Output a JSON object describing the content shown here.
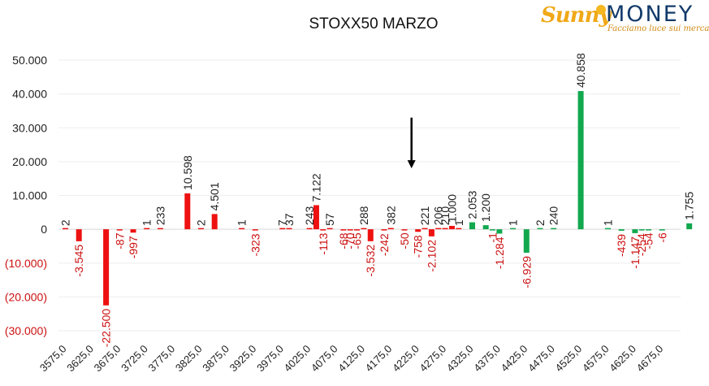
{
  "logo": {
    "brand_a": "Sunny",
    "brand_b": "MONEY",
    "tagline": "Facciamo luce sui mercati"
  },
  "chart_data": {
    "type": "bar",
    "title": "STOXX50 MARZO",
    "xlabel": "",
    "ylabel": "",
    "ylim": [
      -30000,
      50000
    ],
    "y_ticks": [
      50000,
      40000,
      30000,
      20000,
      10000,
      0,
      -10000,
      -20000,
      -30000
    ],
    "y_tick_labels": [
      "50.000",
      "40.000",
      "30.000",
      "20.000",
      "10.000",
      "0",
      "(10.000)",
      "(20.000)",
      "(30.000)"
    ],
    "grid": "horizontal",
    "colors": {
      "put": "#ee1111",
      "call": "#11a84e",
      "axis_text": "#222222",
      "neg_text": "#cc1111",
      "grid": "#eeeeee",
      "arrow": "#000000"
    },
    "put_strikes": [
      3575,
      3825
    ],
    "x_tick_labels": [
      "3575,0",
      "3625,0",
      "3675,0",
      "3725,0",
      "3775,0",
      "3825,0",
      "3875,0",
      "3925,0",
      "3975,0",
      "4025,0",
      "4075,0",
      "4125,0",
      "4175,0",
      "4225,0",
      "4275,0",
      "4325,0",
      "4375,0",
      "4425,0",
      "4475,0",
      "4525,0",
      "4575,0",
      "4625,0",
      "4675,0"
    ],
    "bars": [
      {
        "x": 3575,
        "value": 2,
        "label": "2",
        "color": "put"
      },
      {
        "x": 3600,
        "value": -3545,
        "label": "-3.545",
        "color": "put"
      },
      {
        "x": 3650,
        "value": -22500,
        "label": "-22.500",
        "color": "put"
      },
      {
        "x": 3675,
        "value": -87,
        "label": "-87",
        "color": "put"
      },
      {
        "x": 3700,
        "value": -997,
        "label": "-997",
        "color": "put"
      },
      {
        "x": 3725,
        "value": 1,
        "label": "1",
        "color": "put"
      },
      {
        "x": 3750,
        "value": 233,
        "label": "233",
        "color": "put"
      },
      {
        "x": 3800,
        "value": 10598,
        "label": "10.598",
        "color": "put"
      },
      {
        "x": 3825,
        "value": 2,
        "label": "2",
        "color": "put"
      },
      {
        "x": 3850,
        "value": 4501,
        "label": "4.501",
        "color": "put"
      },
      {
        "x": 3900,
        "value": 1,
        "label": "1",
        "color": "put"
      },
      {
        "x": 3925,
        "value": -323,
        "label": "-323",
        "color": "put"
      },
      {
        "x": 3975,
        "value": 7,
        "label": "7",
        "color": "put"
      },
      {
        "x": 3987.5,
        "value": 37,
        "label": "37",
        "color": "put"
      },
      {
        "x": 4025,
        "value": 243,
        "label": "243",
        "color": "put"
      },
      {
        "x": 4037.5,
        "value": 7122,
        "label": "7.122",
        "color": "put"
      },
      {
        "x": 4050,
        "value": -113,
        "label": "-113",
        "color": "put"
      },
      {
        "x": 4062.5,
        "value": 57,
        "label": "57",
        "color": "put"
      },
      {
        "x": 4087.5,
        "value": -68,
        "label": "-68",
        "color": "put"
      },
      {
        "x": 4100,
        "value": -70,
        "label": "-70",
        "color": "put"
      },
      {
        "x": 4112.5,
        "value": -65,
        "label": "-65",
        "color": "put"
      },
      {
        "x": 4125,
        "value": 288,
        "label": "288",
        "color": "put"
      },
      {
        "x": 4137.5,
        "value": -3532,
        "label": "-3.532",
        "color": "put"
      },
      {
        "x": 4162.5,
        "value": -242,
        "label": "-242",
        "color": "put"
      },
      {
        "x": 4175,
        "value": 382,
        "label": "382",
        "color": "put"
      },
      {
        "x": 4200,
        "value": -50,
        "label": "-50",
        "color": "put"
      },
      {
        "x": 4225,
        "value": -758,
        "label": "-758",
        "color": "put"
      },
      {
        "x": 4237.5,
        "value": 221,
        "label": "221",
        "color": "put"
      },
      {
        "x": 4250,
        "value": -2102,
        "label": "-2.102",
        "color": "put"
      },
      {
        "x": 4262.5,
        "value": 206,
        "label": "206",
        "color": "put"
      },
      {
        "x": 4275,
        "value": 210,
        "label": "210",
        "color": "put"
      },
      {
        "x": 4287.5,
        "value": 1000,
        "label": "1.000",
        "color": "put"
      },
      {
        "x": 4300,
        "value": 1,
        "label": "1",
        "color": "put"
      },
      {
        "x": 4325,
        "value": 2053,
        "label": "2.053",
        "color": "call"
      },
      {
        "x": 4350,
        "value": 1200,
        "label": "1.200",
        "color": "call"
      },
      {
        "x": 4362.5,
        "value": -1,
        "label": "-1",
        "color": "call"
      },
      {
        "x": 4375,
        "value": -1284,
        "label": "-1.284",
        "color": "call"
      },
      {
        "x": 4400,
        "value": 1,
        "label": "1",
        "color": "call"
      },
      {
        "x": 4425,
        "value": -6929,
        "label": "-6.929",
        "color": "call"
      },
      {
        "x": 4450,
        "value": 2,
        "label": "2",
        "color": "call"
      },
      {
        "x": 4475,
        "value": 240,
        "label": "240",
        "color": "call"
      },
      {
        "x": 4525,
        "value": 40858,
        "label": "40.858",
        "color": "call"
      },
      {
        "x": 4575,
        "value": 1,
        "label": "1",
        "color": "call"
      },
      {
        "x": 4600,
        "value": -439,
        "label": "-439",
        "color": "call"
      },
      {
        "x": 4625,
        "value": -1147,
        "label": "-1.147",
        "color": "call"
      },
      {
        "x": 4637.5,
        "value": -254,
        "label": "-254",
        "color": "call"
      },
      {
        "x": 4650,
        "value": -54,
        "label": "-54",
        "color": "call"
      },
      {
        "x": 4675,
        "value": -6,
        "label": "-6",
        "color": "call"
      },
      {
        "x": 4725,
        "value": 1755,
        "label": "1.755",
        "color": "call"
      }
    ],
    "annotations": [
      {
        "type": "arrow-down",
        "x": 4225,
        "from_y": 33000,
        "to_y": 18500
      }
    ]
  }
}
